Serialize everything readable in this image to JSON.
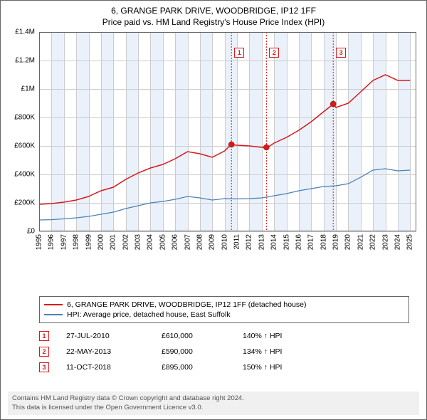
{
  "title": {
    "line1": "6, GRANGE PARK DRIVE, WOODBRIDGE, IP12 1FF",
    "line2": "Price paid vs. HM Land Registry's House Price Index (HPI)"
  },
  "chart": {
    "type": "line",
    "background_color": "#ffffff",
    "grid_color": "#cccccc",
    "band_color": "#eaf1fa",
    "xlim": [
      1995,
      2025.5
    ],
    "ylim": [
      0,
      1400000
    ],
    "ytick_step": 200000,
    "yticks": [
      "£0",
      "£200K",
      "£400K",
      "£600K",
      "£800K",
      "£1M",
      "£1.2M",
      "£1.4M"
    ],
    "xticks": [
      1995,
      1996,
      1997,
      1998,
      1999,
      2000,
      2001,
      2002,
      2003,
      2004,
      2005,
      2006,
      2007,
      2008,
      2009,
      2010,
      2011,
      2012,
      2013,
      2014,
      2015,
      2016,
      2017,
      2018,
      2019,
      2020,
      2021,
      2022,
      2023,
      2024,
      2025
    ],
    "series": [
      {
        "name": "price_paid",
        "label": "6, GRANGE PARK DRIVE, WOODBRIDGE, IP12 1FF (detached house)",
        "color": "#d7191c",
        "line_width": 1.5,
        "points": [
          [
            1995,
            190000
          ],
          [
            1996,
            195000
          ],
          [
            1997,
            205000
          ],
          [
            1998,
            220000
          ],
          [
            1999,
            245000
          ],
          [
            2000,
            285000
          ],
          [
            2001,
            310000
          ],
          [
            2002,
            365000
          ],
          [
            2003,
            410000
          ],
          [
            2004,
            445000
          ],
          [
            2005,
            470000
          ],
          [
            2006,
            510000
          ],
          [
            2007,
            560000
          ],
          [
            2008,
            545000
          ],
          [
            2009,
            520000
          ],
          [
            2010,
            565000
          ],
          [
            2010.5,
            608000
          ],
          [
            2011,
            605000
          ],
          [
            2012,
            600000
          ],
          [
            2013,
            590000
          ],
          [
            2013.5,
            592000
          ],
          [
            2014,
            620000
          ],
          [
            2015,
            660000
          ],
          [
            2016,
            710000
          ],
          [
            2017,
            770000
          ],
          [
            2018,
            840000
          ],
          [
            2018.8,
            895000
          ],
          [
            2019,
            870000
          ],
          [
            2020,
            900000
          ],
          [
            2021,
            980000
          ],
          [
            2022,
            1060000
          ],
          [
            2023,
            1100000
          ],
          [
            2024,
            1060000
          ],
          [
            2025,
            1060000
          ]
        ]
      },
      {
        "name": "hpi",
        "label": "HPI: Average price, detached house, East Suffolk",
        "color": "#4a7fb8",
        "line_width": 1.2,
        "points": [
          [
            1995,
            80000
          ],
          [
            1996,
            82000
          ],
          [
            1997,
            88000
          ],
          [
            1998,
            95000
          ],
          [
            1999,
            105000
          ],
          [
            2000,
            120000
          ],
          [
            2001,
            135000
          ],
          [
            2002,
            160000
          ],
          [
            2003,
            180000
          ],
          [
            2004,
            200000
          ],
          [
            2005,
            210000
          ],
          [
            2006,
            225000
          ],
          [
            2007,
            245000
          ],
          [
            2008,
            235000
          ],
          [
            2009,
            220000
          ],
          [
            2010,
            230000
          ],
          [
            2011,
            228000
          ],
          [
            2012,
            230000
          ],
          [
            2013,
            235000
          ],
          [
            2014,
            250000
          ],
          [
            2015,
            265000
          ],
          [
            2016,
            285000
          ],
          [
            2017,
            300000
          ],
          [
            2018,
            315000
          ],
          [
            2019,
            320000
          ],
          [
            2020,
            335000
          ],
          [
            2021,
            380000
          ],
          [
            2022,
            430000
          ],
          [
            2023,
            440000
          ],
          [
            2024,
            425000
          ],
          [
            2025,
            430000
          ]
        ]
      }
    ],
    "sale_markers": [
      {
        "n": "1",
        "x": 2010.55,
        "y": 610000
      },
      {
        "n": "2",
        "x": 2013.38,
        "y": 590000
      },
      {
        "n": "3",
        "x": 2018.78,
        "y": 895000
      }
    ],
    "marker_radius": 4
  },
  "legend": {
    "items": [
      {
        "color": "#d7191c",
        "text": "6, GRANGE PARK DRIVE, WOODBRIDGE, IP12 1FF (detached house)"
      },
      {
        "color": "#4a7fb8",
        "text": "HPI: Average price, detached house, East Suffolk"
      }
    ]
  },
  "events": [
    {
      "n": "1",
      "date": "27-JUL-2010",
      "price": "£610,000",
      "pct": "140% ↑ HPI"
    },
    {
      "n": "2",
      "date": "22-MAY-2013",
      "price": "£590,000",
      "pct": "134% ↑ HPI"
    },
    {
      "n": "3",
      "date": "11-OCT-2018",
      "price": "£895,000",
      "pct": "150% ↑ HPI"
    }
  ],
  "footer": {
    "line1": "Contains HM Land Registry data © Crown copyright and database right 2024.",
    "line2": "This data is licensed under the Open Government Licence v3.0."
  },
  "colors": {
    "red": "#d7191c",
    "blue": "#4a7fb8"
  }
}
